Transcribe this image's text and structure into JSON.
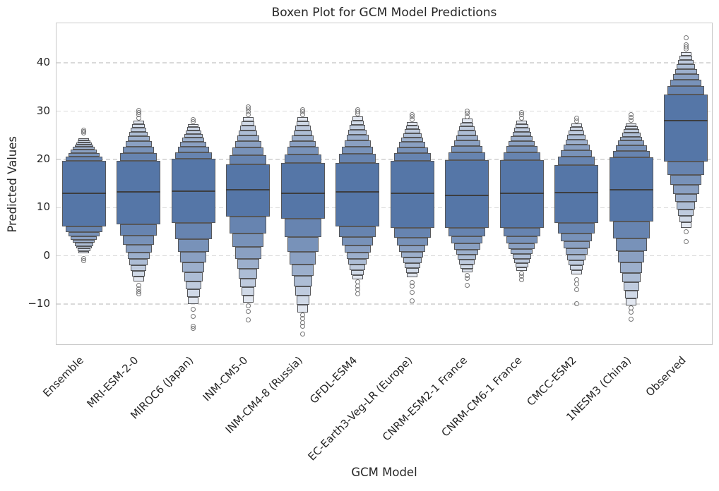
{
  "chart_data": {
    "type": "boxen",
    "title": "Boxen Plot for GCM Model Predictions",
    "xlabel": "GCM Model",
    "ylabel": "Predicted Values",
    "ylim": [
      -18.6,
      48.2
    ],
    "yticks": [
      -10,
      0,
      10,
      20,
      30,
      40
    ],
    "ytick_labels": [
      "−10",
      "0",
      "10",
      "20",
      "30",
      "40"
    ],
    "grid": "horizontal-dashed",
    "legend": "none",
    "categories": [
      "Ensemble",
      "MRI-ESM-2-0",
      "MIROC6 (Japan)",
      "INM-CM5-0",
      "INM-CM4-8 (Russia)",
      "GFDL-ESM4",
      "EC-Earth3-Veg-LR (Europe)",
      "CNRM-ESM2-1 France",
      "CNRM-CM6-1 France",
      "CMCC-ESM2",
      "1NESM3 (China)",
      "Observed"
    ],
    "levels_per_side": 8,
    "level_fractions": [
      0.196,
      0.353,
      0.489,
      0.608,
      0.72,
      0.82,
      0.913,
      1.0
    ],
    "box_width_frac": 0.8,
    "level_width_ratio": 0.84,
    "series": [
      {
        "name": "Ensemble",
        "median": 13.0,
        "q1": 6.1,
        "q3": 19.7,
        "high": 24.4,
        "low": 0.5,
        "outliers_high": [
          25.4,
          25.8,
          26.1
        ],
        "outliers_low": [
          -0.5,
          -1.0
        ]
      },
      {
        "name": "MRI-ESM-2-0",
        "median": 13.2,
        "q1": 6.5,
        "q3": 19.7,
        "high": 28.0,
        "low": -5.3,
        "outliers_high": [
          28.6,
          29.2,
          29.7,
          30.2
        ],
        "outliers_low": [
          -6.1,
          -6.8,
          -7.4,
          -7.9
        ]
      },
      {
        "name": "MIROC6 (Japan)",
        "median": 13.4,
        "q1": 6.8,
        "q3": 20.1,
        "high": 27.3,
        "low": -10.0,
        "outliers_high": [
          27.8,
          28.3
        ],
        "outliers_low": [
          -11.0,
          -12.5,
          -14.6,
          -15.0
        ]
      },
      {
        "name": "INM-CM5-0",
        "median": 13.7,
        "q1": 8.1,
        "q3": 19.0,
        "high": 28.7,
        "low": -9.7,
        "outliers_high": [
          29.3,
          29.9,
          30.4,
          30.9
        ],
        "outliers_low": [
          -10.4,
          -11.5,
          -13.2
        ]
      },
      {
        "name": "INM-CM4-8 (Russia)",
        "median": 13.0,
        "q1": 7.7,
        "q3": 19.2,
        "high": 28.7,
        "low": -11.8,
        "outliers_high": [
          29.3,
          29.8,
          30.3
        ],
        "outliers_low": [
          -12.2,
          -13.0,
          -13.8,
          -14.6,
          -16.2
        ]
      },
      {
        "name": "GFDL-ESM4",
        "median": 13.2,
        "q1": 6.1,
        "q3": 19.2,
        "high": 28.9,
        "low": -4.9,
        "outliers_high": [
          29.4,
          29.9,
          30.3
        ],
        "outliers_low": [
          -5.4,
          -6.2,
          -7.0,
          -7.8
        ]
      },
      {
        "name": "EC-Earth3-Veg-LR (Europe)",
        "median": 13.0,
        "q1": 5.8,
        "q3": 19.7,
        "high": 27.7,
        "low": -4.4,
        "outliers_high": [
          28.2,
          28.8,
          29.2
        ],
        "outliers_low": [
          -5.5,
          -6.3,
          -7.5,
          -9.3
        ]
      },
      {
        "name": "CNRM-ESM2-1 France",
        "median": 12.5,
        "q1": 5.8,
        "q3": 19.8,
        "high": 28.4,
        "low": -3.4,
        "outliers_high": [
          28.9,
          29.5,
          30.0
        ],
        "outliers_low": [
          -4.1,
          -4.7,
          -6.1
        ]
      },
      {
        "name": "CNRM-CM6-1 France",
        "median": 13.0,
        "q1": 5.8,
        "q3": 19.8,
        "high": 28.0,
        "low": -3.1,
        "outliers_high": [
          28.6,
          29.2,
          29.7
        ],
        "outliers_low": [
          -3.6,
          -4.2,
          -4.9
        ]
      },
      {
        "name": "CMCC-ESM2",
        "median": 13.1,
        "q1": 6.8,
        "q3": 18.8,
        "high": 27.5,
        "low": -3.9,
        "outliers_high": [
          28.0,
          28.5
        ],
        "outliers_low": [
          -4.9,
          -5.8,
          -7.0,
          -9.9
        ]
      },
      {
        "name": "1NESM3 (China)",
        "median": 13.7,
        "q1": 7.1,
        "q3": 20.4,
        "high": 27.5,
        "low": -10.3,
        "outliers_high": [
          28.1,
          28.7,
          29.2
        ],
        "outliers_low": [
          -10.8,
          -11.7,
          -13.1
        ]
      },
      {
        "name": "Observed",
        "median": 28.0,
        "q1": 19.5,
        "q3": 33.4,
        "high": 42.2,
        "low": 5.8,
        "outliers_high": [
          42.8,
          43.3,
          43.8,
          45.2
        ],
        "outliers_low": [
          5.0,
          2.9
        ]
      }
    ],
    "colors": {
      "box_dark": "#5576a7",
      "box_light": "#e2e7f0",
      "box_edge": "#56575a",
      "median_line": "#3d3e40",
      "outlier_stroke": "#767677",
      "gridline": "#dadada",
      "spine": "#c9c9c9",
      "text": "#262626",
      "background": "#ffffff"
    }
  }
}
